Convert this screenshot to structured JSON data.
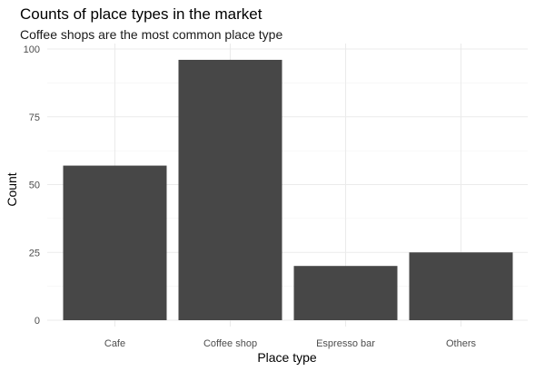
{
  "chart_data": {
    "type": "bar",
    "title": "Counts of place types in the market",
    "subtitle": "Coffee shops are the most common place type",
    "xlabel": "Place type",
    "ylabel": "Count",
    "categories": [
      "Cafe",
      "Coffee shop",
      "Espresso bar",
      "Others"
    ],
    "values": [
      57,
      96,
      20,
      25
    ],
    "ylim": [
      0,
      100
    ],
    "yticks": [
      0,
      25,
      50,
      75,
      100
    ],
    "ytick_labels": [
      "0",
      "25",
      "50",
      "75",
      "100"
    ],
    "grid": true,
    "legend": "none",
    "bar_color": "#474747"
  }
}
